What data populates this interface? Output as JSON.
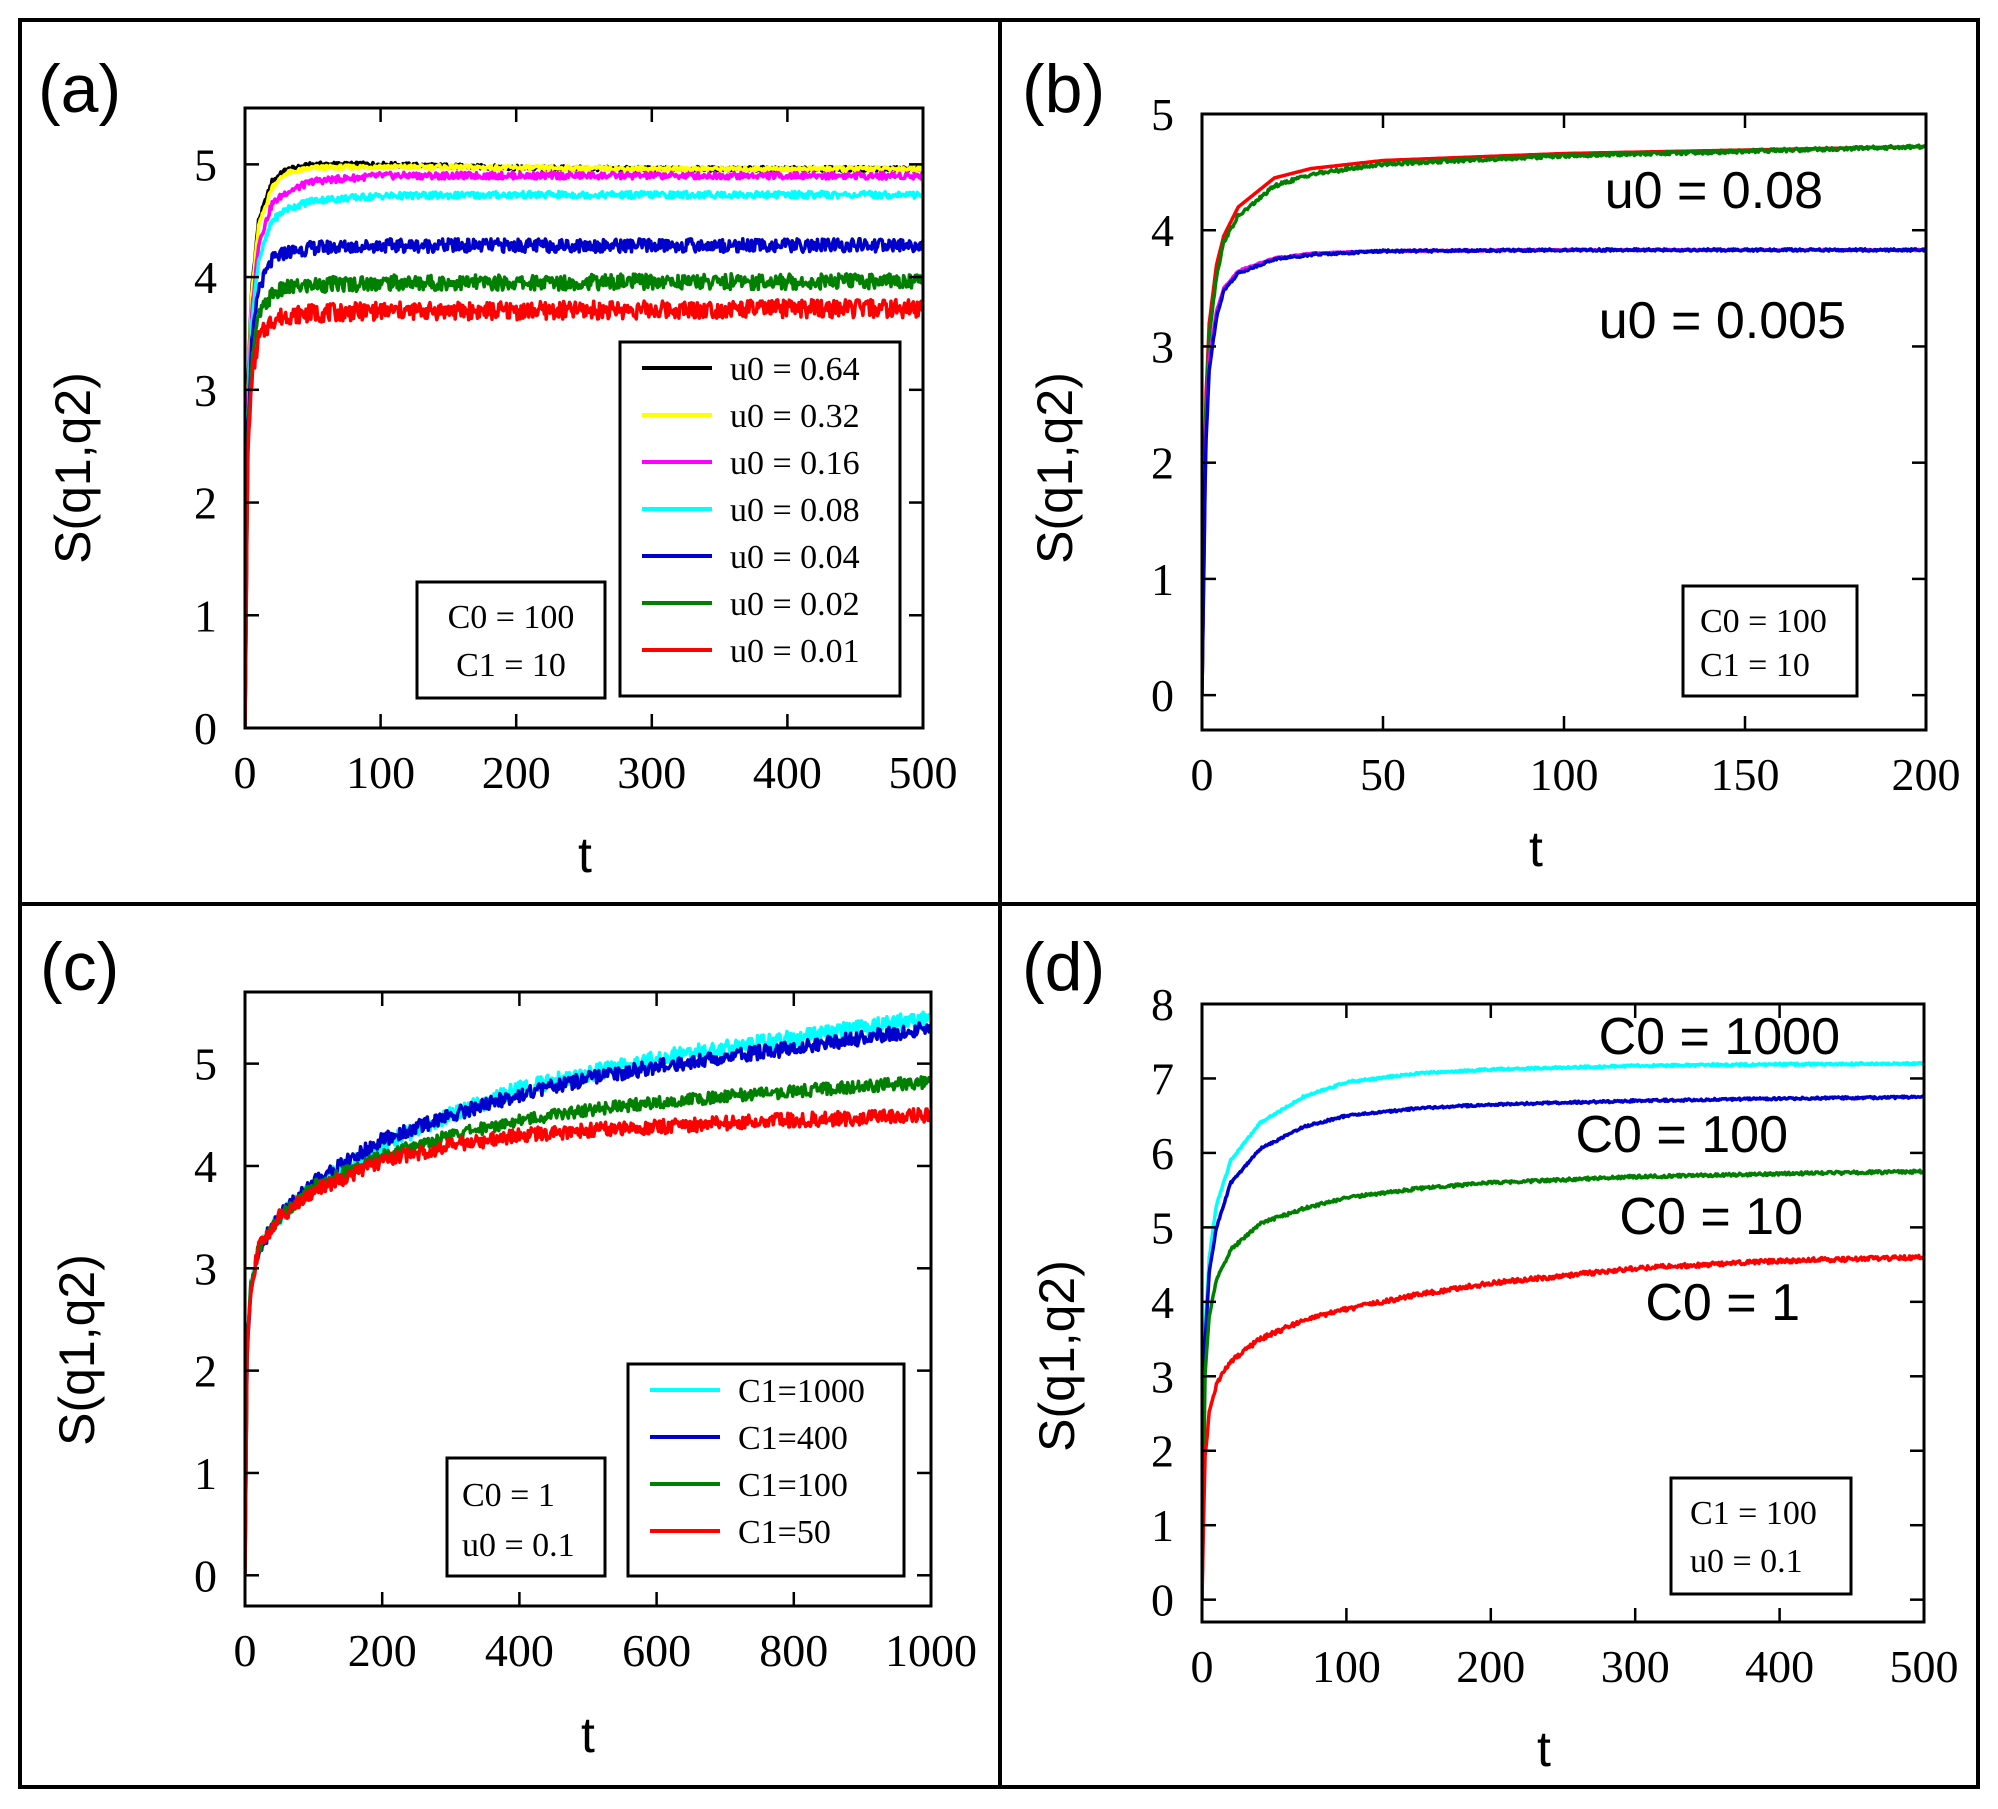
{
  "chart_data": [
    {
      "id": "a",
      "type": "line",
      "panel_label": "(a)",
      "xlabel": "t",
      "ylabel": "S(q1,q2)",
      "xlim": [
        0,
        500
      ],
      "ylim": [
        0,
        5.5
      ],
      "xticks": [
        0,
        100,
        200,
        300,
        400,
        500
      ],
      "yticks": [
        0,
        1,
        2,
        3,
        4,
        5
      ],
      "legend_position": "bottom-right",
      "params": [
        "C0 = 100",
        "C1 = 10"
      ],
      "series": [
        {
          "name": "u0 = 0.64",
          "color": "#000000",
          "x": [
            0,
            2,
            5,
            10,
            20,
            30,
            50,
            100,
            200,
            300,
            400,
            500
          ],
          "y": [
            0,
            3.0,
            3.9,
            4.5,
            4.85,
            4.95,
            5.0,
            5.0,
            4.97,
            4.96,
            4.96,
            4.96
          ]
        },
        {
          "name": "u0 = 0.32",
          "color": "#ffff00",
          "x": [
            0,
            2,
            5,
            10,
            20,
            30,
            50,
            100,
            200,
            300,
            400,
            500
          ],
          "y": [
            0,
            2.9,
            3.85,
            4.45,
            4.8,
            4.92,
            4.97,
            4.98,
            4.97,
            4.96,
            4.96,
            4.96
          ]
        },
        {
          "name": "u0 = 0.16",
          "color": "#ff00ff",
          "x": [
            0,
            2,
            5,
            10,
            20,
            30,
            50,
            100,
            200,
            300,
            400,
            500
          ],
          "y": [
            0,
            2.8,
            3.7,
            4.3,
            4.65,
            4.75,
            4.85,
            4.9,
            4.9,
            4.9,
            4.9,
            4.9
          ]
        },
        {
          "name": "u0 = 0.08",
          "color": "#00ffff",
          "x": [
            0,
            2,
            5,
            10,
            20,
            30,
            50,
            100,
            200,
            300,
            400,
            500
          ],
          "y": [
            0,
            2.7,
            3.6,
            4.15,
            4.5,
            4.6,
            4.68,
            4.72,
            4.73,
            4.73,
            4.73,
            4.73
          ]
        },
        {
          "name": "u0 = 0.04",
          "color": "#0000cc",
          "x": [
            0,
            2,
            5,
            10,
            20,
            30,
            50,
            100,
            200,
            300,
            400,
            500
          ],
          "y": [
            0,
            2.6,
            3.4,
            3.9,
            4.15,
            4.22,
            4.26,
            4.28,
            4.28,
            4.28,
            4.28,
            4.28
          ]
        },
        {
          "name": "u0 = 0.02",
          "color": "#008000",
          "x": [
            0,
            2,
            5,
            10,
            20,
            30,
            50,
            100,
            200,
            300,
            400,
            500
          ],
          "y": [
            0,
            2.5,
            3.25,
            3.65,
            3.85,
            3.9,
            3.93,
            3.95,
            3.95,
            3.96,
            3.96,
            3.97
          ]
        },
        {
          "name": "u0 = 0.01",
          "color": "#ff0000",
          "x": [
            0,
            2,
            5,
            10,
            20,
            30,
            50,
            100,
            200,
            300,
            400,
            500
          ],
          "y": [
            0,
            2.4,
            3.1,
            3.45,
            3.62,
            3.66,
            3.68,
            3.7,
            3.7,
            3.71,
            3.72,
            3.72
          ]
        }
      ]
    },
    {
      "id": "b",
      "type": "line",
      "panel_label": "(b)",
      "xlabel": "t",
      "ylabel": "S(q1,q2)",
      "xlim": [
        0,
        200
      ],
      "ylim": [
        -0.3,
        5
      ],
      "xticks": [
        0,
        50,
        100,
        150,
        200
      ],
      "yticks": [
        0,
        1,
        2,
        3,
        4,
        5
      ],
      "params": [
        "C0 = 100",
        "C1 = 10"
      ],
      "annotations": [
        "u0 = 0.08",
        "u0 = 0.005"
      ],
      "series": [
        {
          "color": "#ff0000",
          "x": [
            0,
            1,
            2,
            4,
            6,
            10,
            20,
            30,
            50,
            100,
            150,
            200
          ],
          "y": [
            0,
            2.5,
            3.2,
            3.7,
            3.95,
            4.2,
            4.45,
            4.53,
            4.6,
            4.66,
            4.69,
            4.72
          ]
        },
        {
          "color": "#008000",
          "x": [
            0,
            1,
            2,
            4,
            6,
            10,
            20,
            30,
            50,
            100,
            150,
            200
          ],
          "y": [
            0,
            2.4,
            3.1,
            3.6,
            3.9,
            4.12,
            4.38,
            4.48,
            4.57,
            4.64,
            4.68,
            4.72
          ]
        },
        {
          "color": "#ff00ff",
          "x": [
            0,
            1,
            2,
            4,
            6,
            10,
            20,
            30,
            50,
            100,
            150,
            200
          ],
          "y": [
            0,
            2.2,
            2.9,
            3.3,
            3.5,
            3.65,
            3.76,
            3.8,
            3.82,
            3.83,
            3.83,
            3.83
          ]
        },
        {
          "color": "#0000cc",
          "x": [
            0,
            1,
            2,
            4,
            6,
            10,
            20,
            30,
            50,
            100,
            150,
            200
          ],
          "y": [
            0,
            2.1,
            2.8,
            3.25,
            3.48,
            3.63,
            3.75,
            3.79,
            3.82,
            3.83,
            3.83,
            3.83
          ]
        }
      ]
    },
    {
      "id": "c",
      "type": "line",
      "panel_label": "(c)",
      "xlabel": "t",
      "ylabel": "S(q1,q2)",
      "xlim": [
        0,
        1000
      ],
      "ylim": [
        -0.3,
        5.7
      ],
      "xticks": [
        0,
        200,
        400,
        600,
        800,
        1000
      ],
      "yticks": [
        0,
        1,
        2,
        3,
        4,
        5
      ],
      "legend_position": "bottom-right",
      "params": [
        "C0 = 1",
        "u0 = 0.1"
      ],
      "series": [
        {
          "name": "C1=1000",
          "color": "#00ffff",
          "x": [
            0,
            3,
            8,
            20,
            50,
            100,
            200,
            300,
            400,
            500,
            600,
            700,
            800,
            900,
            1000
          ],
          "y": [
            0,
            2.2,
            2.8,
            3.2,
            3.5,
            3.8,
            4.2,
            4.5,
            4.75,
            4.9,
            5.05,
            5.15,
            5.25,
            5.35,
            5.45
          ]
        },
        {
          "name": "C1=400",
          "color": "#0000cc",
          "x": [
            0,
            3,
            8,
            20,
            50,
            100,
            200,
            300,
            400,
            500,
            600,
            700,
            800,
            900,
            1000
          ],
          "y": [
            0,
            2.2,
            2.8,
            3.2,
            3.5,
            3.85,
            4.25,
            4.5,
            4.7,
            4.85,
            4.97,
            5.07,
            5.15,
            5.25,
            5.35
          ]
        },
        {
          "name": "C1=100",
          "color": "#008000",
          "x": [
            0,
            3,
            8,
            20,
            50,
            100,
            200,
            300,
            400,
            500,
            600,
            700,
            800,
            900,
            1000
          ],
          "y": [
            0,
            2.2,
            2.8,
            3.2,
            3.5,
            3.8,
            4.1,
            4.3,
            4.45,
            4.55,
            4.62,
            4.68,
            4.73,
            4.78,
            4.82
          ]
        },
        {
          "name": "C1=50",
          "color": "#ff0000",
          "x": [
            0,
            3,
            8,
            20,
            50,
            100,
            200,
            300,
            400,
            500,
            600,
            700,
            800,
            900,
            1000
          ],
          "y": [
            0,
            2.2,
            2.8,
            3.2,
            3.5,
            3.75,
            4.05,
            4.2,
            4.3,
            4.35,
            4.38,
            4.42,
            4.45,
            4.47,
            4.5
          ]
        }
      ]
    },
    {
      "id": "d",
      "type": "line",
      "panel_label": "(d)",
      "xlabel": "t",
      "ylabel": "S(q1,q2)",
      "xlim": [
        0,
        500
      ],
      "ylim": [
        -0.3,
        8
      ],
      "xticks": [
        0,
        100,
        200,
        300,
        400,
        500
      ],
      "yticks": [
        0,
        1,
        2,
        3,
        4,
        5,
        6,
        7,
        8
      ],
      "params": [
        "C1 = 100",
        "u0 = 0.1"
      ],
      "annotations": [
        "C0 = 1000",
        "C0 = 100",
        "C0 = 10",
        "C0 = 1"
      ],
      "series": [
        {
          "color": "#00ffff",
          "x": [
            0,
            2,
            5,
            10,
            20,
            40,
            70,
            100,
            150,
            200,
            300,
            400,
            500
          ],
          "y": [
            0,
            3.6,
            4.6,
            5.3,
            5.9,
            6.4,
            6.75,
            6.95,
            7.07,
            7.12,
            7.17,
            7.19,
            7.2
          ]
        },
        {
          "color": "#0000cc",
          "x": [
            0,
            2,
            5,
            10,
            20,
            40,
            70,
            100,
            150,
            200,
            300,
            400,
            500
          ],
          "y": [
            0,
            3.4,
            4.4,
            5.0,
            5.6,
            6.05,
            6.35,
            6.5,
            6.6,
            6.65,
            6.7,
            6.73,
            6.75
          ]
        },
        {
          "color": "#008000",
          "x": [
            0,
            2,
            5,
            10,
            20,
            40,
            70,
            100,
            150,
            200,
            300,
            400,
            500
          ],
          "y": [
            0,
            3.0,
            3.8,
            4.3,
            4.7,
            5.05,
            5.25,
            5.4,
            5.52,
            5.6,
            5.68,
            5.72,
            5.75
          ]
        },
        {
          "color": "#ff0000",
          "x": [
            0,
            2,
            5,
            10,
            20,
            40,
            70,
            100,
            150,
            200,
            300,
            400,
            500
          ],
          "y": [
            0,
            1.9,
            2.5,
            2.9,
            3.2,
            3.5,
            3.75,
            3.9,
            4.1,
            4.25,
            4.45,
            4.55,
            4.6
          ]
        }
      ]
    }
  ]
}
